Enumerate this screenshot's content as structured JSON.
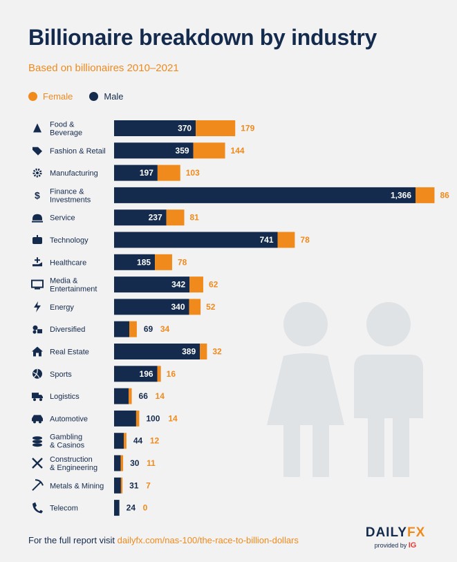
{
  "header": {
    "title": "Billionaire breakdown by industry",
    "subtitle": "Based on billionaires 2010–2021"
  },
  "colors": {
    "male": "#152b4d",
    "female": "#f08a1c",
    "background": "#f2f2f2",
    "silhouette": "#dfe3e6"
  },
  "chart_data": {
    "type": "bar",
    "orientation": "horizontal",
    "stacked": true,
    "legend_position": "top-left",
    "grid": false,
    "categories": [
      {
        "label": [
          "Food &",
          "Beverage"
        ],
        "icon": "pizza-icon"
      },
      {
        "label": [
          "Fashion & Retail"
        ],
        "icon": "tag-icon"
      },
      {
        "label": [
          "Manufacturing"
        ],
        "icon": "gear-icon"
      },
      {
        "label": [
          "Finance &",
          "Investments"
        ],
        "icon": "dollar-icon"
      },
      {
        "label": [
          "Service"
        ],
        "icon": "service-bell-icon"
      },
      {
        "label": [
          "Technology"
        ],
        "icon": "robot-icon"
      },
      {
        "label": [
          "Healthcare"
        ],
        "icon": "medical-hand-icon"
      },
      {
        "label": [
          "Media &",
          "Entertainment"
        ],
        "icon": "monitor-icon"
      },
      {
        "label": [
          "Energy"
        ],
        "icon": "lightning-icon"
      },
      {
        "label": [
          "Diversified"
        ],
        "icon": "shapes-icon"
      },
      {
        "label": [
          "Real Estate"
        ],
        "icon": "house-icon"
      },
      {
        "label": [
          "Sports"
        ],
        "icon": "volleyball-icon"
      },
      {
        "label": [
          "Logistics"
        ],
        "icon": "truck-icon"
      },
      {
        "label": [
          "Automotive"
        ],
        "icon": "car-icon"
      },
      {
        "label": [
          "Gambling",
          "& Casinos"
        ],
        "icon": "chips-icon"
      },
      {
        "label": [
          "Construction",
          "& Engineering"
        ],
        "icon": "tools-icon"
      },
      {
        "label": [
          "Metals & Mining"
        ],
        "icon": "pickaxe-icon"
      },
      {
        "label": [
          "Telecom"
        ],
        "icon": "phone-icon"
      }
    ],
    "series": [
      {
        "name": "Male",
        "values": [
          370,
          359,
          197,
          1366,
          237,
          741,
          185,
          342,
          340,
          69,
          389,
          196,
          66,
          100,
          44,
          30,
          31,
          24
        ]
      },
      {
        "name": "Female",
        "values": [
          179,
          144,
          103,
          86,
          81,
          78,
          78,
          62,
          52,
          34,
          32,
          16,
          14,
          14,
          12,
          11,
          7,
          0
        ]
      }
    ],
    "value_labels_male": [
      "370",
      "359",
      "197",
      "1,366",
      "237",
      "741",
      "185",
      "342",
      "340",
      "69",
      "389",
      "196",
      "66",
      "100",
      "44",
      "30",
      "31",
      "24"
    ],
    "value_labels_female": [
      "179",
      "144",
      "103",
      "86",
      "81",
      "78",
      "78",
      "62",
      "52",
      "34",
      "32",
      "16",
      "14",
      "14",
      "12",
      "11",
      "7",
      "0"
    ]
  },
  "legend": {
    "female": "Female",
    "male": "Male"
  },
  "footer": {
    "prefix": "For the full report visit ",
    "link": "dailyfx.com/nas-100/the-race-to-billion-dollars"
  },
  "brand": {
    "name_part1": "DAILY",
    "name_part2": "FX",
    "provided_by": "provided by ",
    "provider": "IG"
  }
}
